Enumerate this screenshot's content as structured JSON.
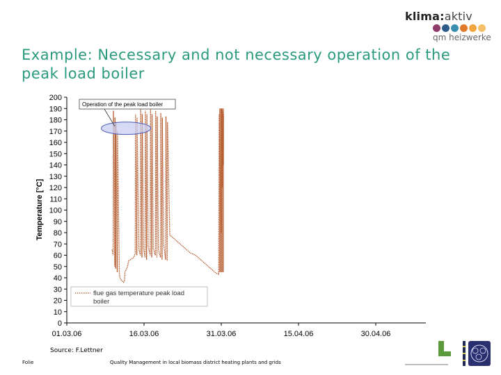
{
  "header": {
    "logo_word_main": "klima",
    "logo_word_colon": ":",
    "logo_word_tail": "aktiv",
    "logo_sub": "qm heizwerke",
    "logo_dot_colors": [
      "#8e3a6b",
      "#2e5c8a",
      "#3a8fb0",
      "#e07a2a",
      "#f2a640",
      "#f5c06a"
    ],
    "logo_icon": "klimaaktiv-logo-icon"
  },
  "slide": {
    "title": "Example: Necessary and not necessary operation of the peak load boiler",
    "source": "Source: F.Lettner",
    "footer_left": "Folie",
    "footer_center": "Quality Management in local biomass district heating plants and grids"
  },
  "colors": {
    "title": "#2a9a7c",
    "series": "#b3582a",
    "annotation_fill": "#c8cdf0",
    "annotation_stroke": "#4a58b8"
  },
  "chart_data": {
    "type": "line",
    "ylabel": "Temperature [°C]",
    "xlabel": "",
    "ylim": [
      0,
      200
    ],
    "yticks": [
      0,
      10,
      20,
      30,
      40,
      50,
      60,
      70,
      80,
      90,
      100,
      110,
      120,
      130,
      140,
      150,
      160,
      170,
      180,
      190,
      200
    ],
    "x_tick_days": [
      0,
      15,
      30,
      45,
      60
    ],
    "x_tick_labels": [
      "01.03.06",
      "16.03.06",
      "31.03.06",
      "15.04.06",
      "30.04.06"
    ],
    "legend_location": "bottom-left",
    "grid": false,
    "annotation": {
      "text": "Operation of the peak load boiler",
      "ellipse_center": [
        11.5,
        172.5
      ],
      "ellipse_radius": [
        4.8,
        5.5
      ]
    },
    "series": [
      {
        "name": "flue gas temperature peak load boiler",
        "style": "dotted",
        "x": [
          8.8,
          9.0,
          9.05,
          9.3,
          9.35,
          9.5,
          9.55,
          9.8,
          9.85,
          10.2,
          10.3,
          10.6,
          11.0,
          11.2,
          11.3,
          11.8,
          12.0,
          13.0,
          13.3,
          13.35,
          13.6,
          13.65,
          14.0,
          14.3,
          14.35,
          14.6,
          14.65,
          14.9,
          15.2,
          15.25,
          15.5,
          15.55,
          15.8,
          16.2,
          16.25,
          16.5,
          16.55,
          16.8,
          17.2,
          17.25,
          17.5,
          17.55,
          17.8,
          18.2,
          18.25,
          18.5,
          18.55,
          18.8,
          19.2,
          19.25,
          19.5,
          19.55,
          20.0,
          24.0,
          25.0,
          26.0,
          27.0,
          27.5,
          28.0,
          28.5,
          29.0,
          29.5,
          29.6,
          30.0,
          30.05,
          30.2,
          30.25,
          30.4,
          30.45
        ],
        "values": [
          65,
          60,
          188,
          50,
          182,
          48,
          178,
          45,
          170,
          44,
          40,
          38,
          36,
          37,
          45,
          50,
          55,
          58,
          62,
          185,
          60,
          182,
          65,
          60,
          190,
          58,
          185,
          66,
          58,
          188,
          56,
          185,
          68,
          60,
          190,
          58,
          185,
          66,
          60,
          188,
          58,
          183,
          65,
          58,
          186,
          56,
          182,
          70,
          56,
          183,
          55,
          178,
          78,
          62,
          60,
          56,
          52,
          50,
          48,
          46,
          44,
          43,
          185,
          80,
          190,
          120,
          188,
          140,
          185
        ]
      }
    ]
  }
}
